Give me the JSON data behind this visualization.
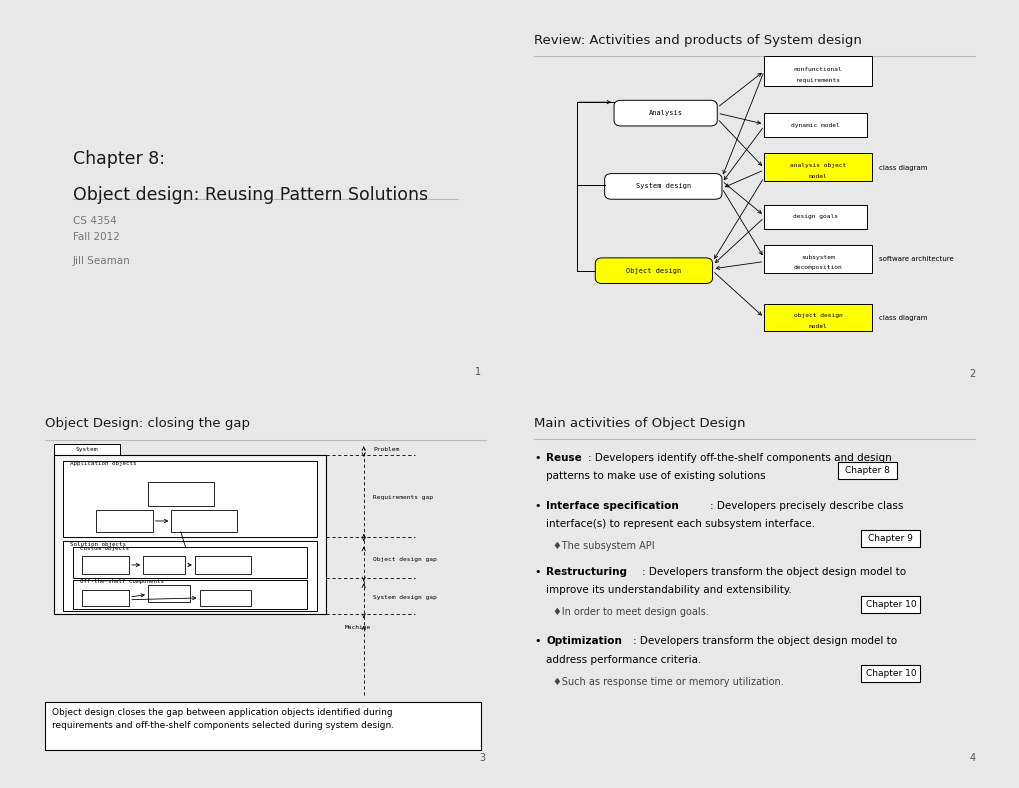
{
  "outer_bg": "#e8e8e8",
  "panel_bg": "#ffffff",
  "panel_border": "#aaaaaa",
  "slide1": {
    "title_line1": "Chapter 8:",
    "title_line2": "Object design: Reusing Pattern Solutions",
    "subtitle1": "CS 4354",
    "subtitle2": "Fall 2012",
    "author": "Jill Seaman",
    "page": "1"
  },
  "slide2": {
    "title": "Review: Activities and products of System design",
    "page": "2"
  },
  "slide3": {
    "title": "Object Design: closing the gap",
    "caption": "Object design closes the gap between application objects identified during\nrequirements and off-the-shelf components selected during system design.",
    "page": "3"
  },
  "slide4": {
    "title": "Main activities of Object Design",
    "page": "4"
  }
}
